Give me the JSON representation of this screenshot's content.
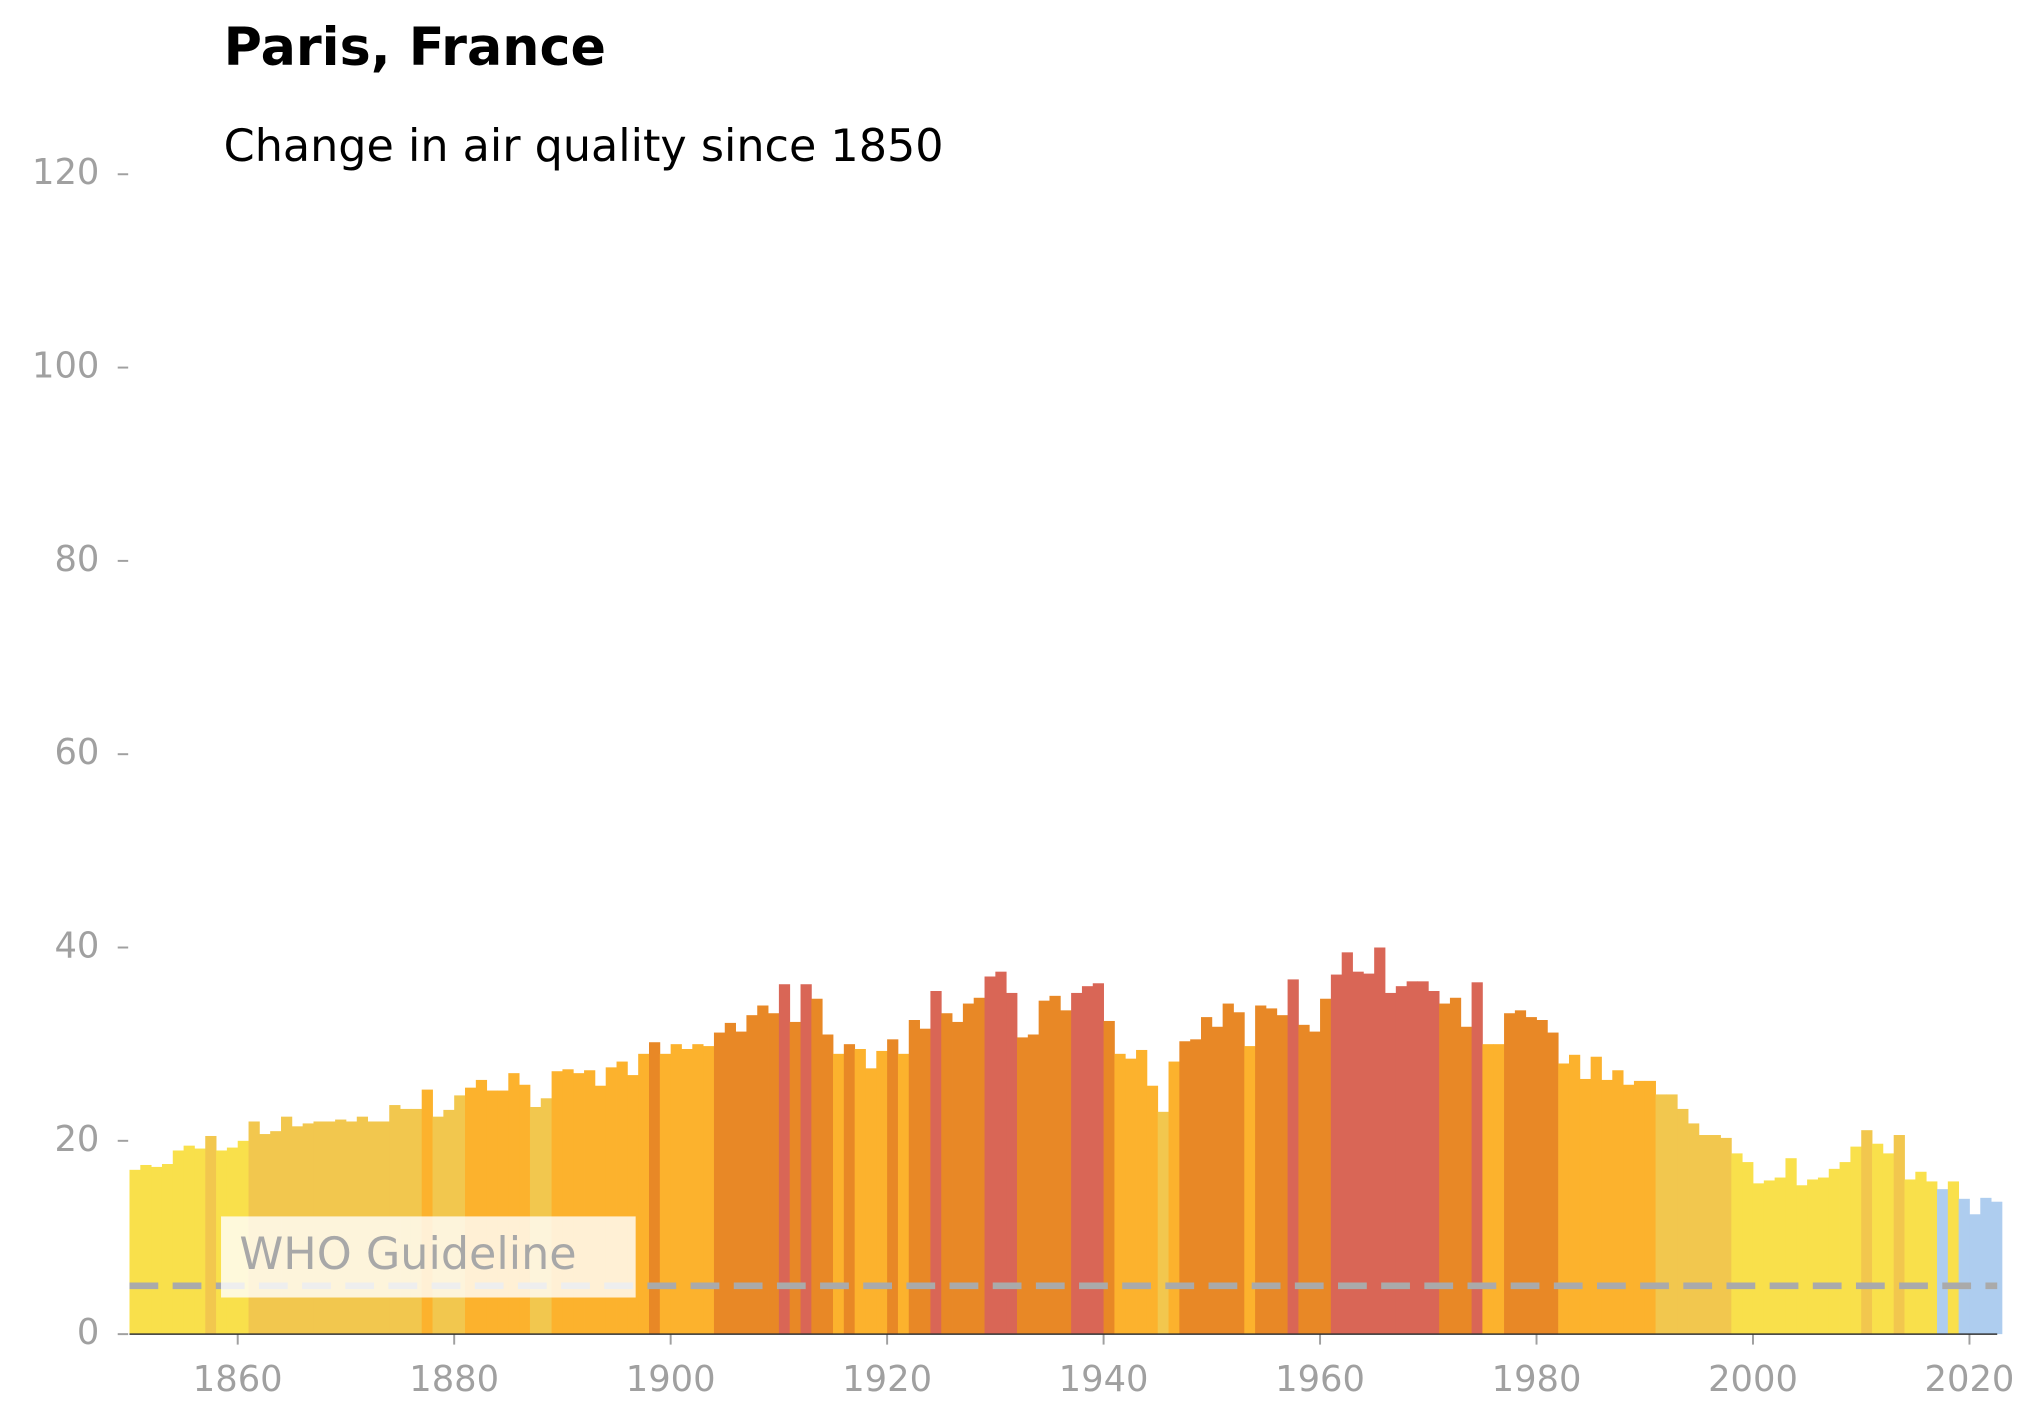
{
  "chart_data": {
    "type": "bar",
    "title": "Paris, France",
    "subtitle": "Change in air quality since 1850",
    "x": [
      1850,
      1851,
      1852,
      1853,
      1854,
      1855,
      1856,
      1857,
      1858,
      1859,
      1860,
      1861,
      1862,
      1863,
      1864,
      1865,
      1866,
      1867,
      1868,
      1869,
      1870,
      1871,
      1872,
      1873,
      1874,
      1875,
      1876,
      1877,
      1878,
      1879,
      1880,
      1881,
      1882,
      1883,
      1884,
      1885,
      1886,
      1887,
      1888,
      1889,
      1890,
      1891,
      1892,
      1893,
      1894,
      1895,
      1896,
      1897,
      1898,
      1899,
      1900,
      1901,
      1902,
      1903,
      1904,
      1905,
      1906,
      1907,
      1908,
      1909,
      1910,
      1911,
      1912,
      1913,
      1914,
      1915,
      1916,
      1917,
      1918,
      1919,
      1920,
      1921,
      1922,
      1923,
      1924,
      1925,
      1926,
      1927,
      1928,
      1929,
      1930,
      1931,
      1932,
      1933,
      1934,
      1935,
      1936,
      1937,
      1938,
      1939,
      1940,
      1941,
      1942,
      1943,
      1944,
      1945,
      1946,
      1947,
      1948,
      1949,
      1950,
      1951,
      1952,
      1953,
      1954,
      1955,
      1956,
      1957,
      1958,
      1959,
      1960,
      1961,
      1962,
      1963,
      1964,
      1965,
      1966,
      1967,
      1968,
      1969,
      1970,
      1971,
      1972,
      1973,
      1974,
      1975,
      1976,
      1977,
      1978,
      1979,
      1980,
      1981,
      1982,
      1983,
      1984,
      1985,
      1986,
      1987,
      1988,
      1989,
      1990,
      1991,
      1992,
      1993,
      1994,
      1995,
      1996,
      1997,
      1998,
      1999,
      2000,
      2001,
      2002,
      2003,
      2004,
      2005,
      2006,
      2007,
      2008,
      2009,
      2010,
      2011,
      2012,
      2013,
      2014,
      2015,
      2016,
      2017,
      2018,
      2019,
      2020,
      2021,
      2022
    ],
    "values": [
      17,
      17.5,
      17.3,
      17.6,
      19,
      19.5,
      19.2,
      20.5,
      19,
      19.3,
      20,
      22,
      20.7,
      21,
      22.5,
      21.5,
      21.8,
      22,
      22,
      22.2,
      22,
      22.5,
      22,
      22,
      23.7,
      23.3,
      23.3,
      25.3,
      22.5,
      23.2,
      24.7,
      25.5,
      26.3,
      25.2,
      25.2,
      27,
      25.8,
      23.5,
      24.4,
      27.2,
      27.4,
      27,
      27.3,
      25.7,
      27.6,
      28.2,
      26.8,
      29,
      30.2,
      29,
      30,
      29.5,
      30,
      29.8,
      31.2,
      32.2,
      31.3,
      33,
      34,
      33.2,
      36.2,
      32.3,
      36.2,
      34.7,
      31,
      29,
      30,
      29.5,
      27.5,
      29.3,
      30.5,
      29,
      32.5,
      31.6,
      35.5,
      33.2,
      32.3,
      34.2,
      34.8,
      37,
      37.5,
      35.3,
      30.7,
      31,
      34.5,
      35,
      33.5,
      35.3,
      36,
      36.3,
      32.4,
      29,
      28.5,
      29.4,
      25.7,
      23,
      28.2,
      30.3,
      30.5,
      32.8,
      31.8,
      34.2,
      33.3,
      29.8,
      34,
      33.7,
      33,
      36.7,
      32,
      31.3,
      34.7,
      37.2,
      39.5,
      37.5,
      37.3,
      40,
      35.3,
      36,
      36.5,
      36.5,
      35.5,
      34.2,
      34.8,
      31.8,
      36.4,
      30,
      30,
      33.2,
      33.5,
      32.8,
      32.5,
      31.2,
      28,
      28.9,
      26.4,
      28.7,
      26.3,
      27.3,
      25.8,
      26.2,
      26.2,
      24.8,
      24.8,
      23.3,
      21.8,
      20.6,
      20.6,
      20.3,
      18.7,
      17.8,
      15.6,
      15.9,
      16.2,
      18.2,
      15.4,
      16,
      16.2,
      17.1,
      17.8,
      19.4,
      21.1,
      19.7,
      18.7,
      20.6,
      16,
      16.8,
      15.8,
      15,
      15.8,
      14,
      12.4,
      14.1,
      13.7
    ],
    "colors": [
      "#f9e04b",
      "#f9e04b",
      "#f9e04b",
      "#f9e04b",
      "#f9e04b",
      "#f9e04b",
      "#f9e04b",
      "#f2c74e",
      "#f9e04b",
      "#f9e04b",
      "#f9e04b",
      "#f2c74e",
      "#f2c74e",
      "#f2c74e",
      "#f2c74e",
      "#f2c74e",
      "#f2c74e",
      "#f2c74e",
      "#f2c74e",
      "#f2c74e",
      "#f2c74e",
      "#f2c74e",
      "#f2c74e",
      "#f2c74e",
      "#f2c74e",
      "#f2c74e",
      "#f2c74e",
      "#fcb22d",
      "#f2c74e",
      "#f2c74e",
      "#f2c74e",
      "#fcb22d",
      "#fcb22d",
      "#fcb22d",
      "#fcb22d",
      "#fcb22d",
      "#fcb22d",
      "#f2c74e",
      "#f2c74e",
      "#fcb22d",
      "#fcb22d",
      "#fcb22d",
      "#fcb22d",
      "#fcb22d",
      "#fcb22d",
      "#fcb22d",
      "#fcb22d",
      "#fcb22d",
      "#e88826",
      "#fcb22d",
      "#fcb22d",
      "#fcb22d",
      "#fcb22d",
      "#fcb22d",
      "#e88826",
      "#e88826",
      "#e88826",
      "#e88826",
      "#e88826",
      "#e88826",
      "#d96656",
      "#e88826",
      "#d96656",
      "#e88826",
      "#e88826",
      "#fcb22d",
      "#e88826",
      "#fcb22d",
      "#fcb22d",
      "#fcb22d",
      "#e88826",
      "#fcb22d",
      "#e88826",
      "#e88826",
      "#d96656",
      "#e88826",
      "#e88826",
      "#e88826",
      "#e88826",
      "#d96656",
      "#d96656",
      "#d96656",
      "#e88826",
      "#e88826",
      "#e88826",
      "#e88826",
      "#e88826",
      "#d96656",
      "#d96656",
      "#d96656",
      "#e88826",
      "#fcb22d",
      "#fcb22d",
      "#fcb22d",
      "#fcb22d",
      "#f2c74e",
      "#fcb22d",
      "#e88826",
      "#e88826",
      "#e88826",
      "#e88826",
      "#e88826",
      "#e88826",
      "#fcb22d",
      "#e88826",
      "#e88826",
      "#e88826",
      "#d96656",
      "#e88826",
      "#e88826",
      "#e88826",
      "#d96656",
      "#d96656",
      "#d96656",
      "#d96656",
      "#d96656",
      "#d96656",
      "#d96656",
      "#d96656",
      "#d96656",
      "#d96656",
      "#e88826",
      "#e88826",
      "#e88826",
      "#d96656",
      "#fcb22d",
      "#fcb22d",
      "#e88826",
      "#e88826",
      "#e88826",
      "#e88826",
      "#e88826",
      "#fcb22d",
      "#fcb22d",
      "#fcb22d",
      "#fcb22d",
      "#fcb22d",
      "#fcb22d",
      "#fcb22d",
      "#fcb22d",
      "#fcb22d",
      "#f2c74e",
      "#f2c74e",
      "#f2c74e",
      "#f2c74e",
      "#f2c74e",
      "#f2c74e",
      "#f2c74e",
      "#f9e04b",
      "#f9e04b",
      "#f9e04b",
      "#f9e04b",
      "#f9e04b",
      "#f9e04b",
      "#f9e04b",
      "#f9e04b",
      "#f9e04b",
      "#f9e04b",
      "#f9e04b",
      "#f9e04b",
      "#f2c74e",
      "#f9e04b",
      "#f9e04b",
      "#f2c74e",
      "#f9e04b",
      "#f9e04b",
      "#f9e04b",
      "#aecdef",
      "#f9e04b",
      "#aecdef",
      "#aecdef",
      "#aecdef",
      "#aecdef"
    ],
    "xlim": [
      1850,
      2023
    ],
    "xticks": [
      1860,
      1880,
      1900,
      1920,
      1940,
      1960,
      1980,
      2000,
      2020
    ],
    "ylim": [
      0,
      120
    ],
    "yticks": [
      0,
      20,
      40,
      60,
      80,
      100,
      120
    ],
    "guideline": {
      "value": 5,
      "label": "WHO Guideline"
    }
  }
}
